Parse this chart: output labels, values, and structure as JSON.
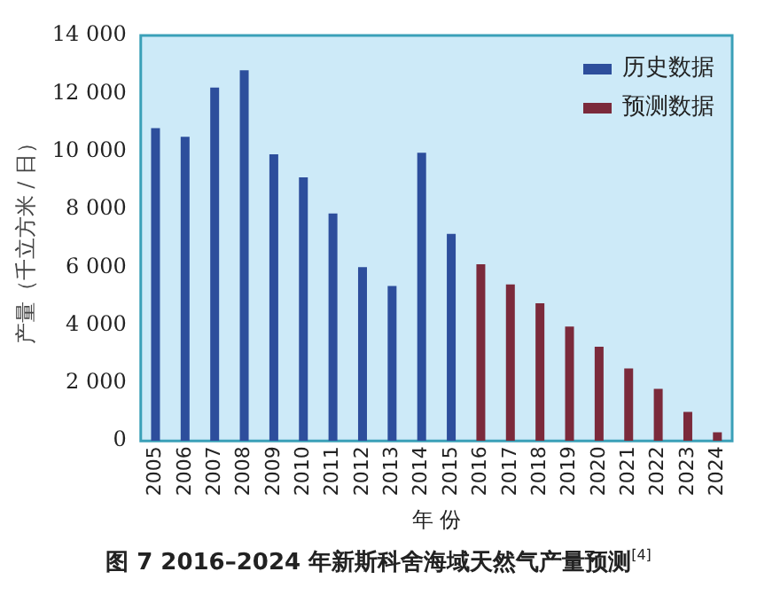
{
  "chart_data": {
    "type": "bar",
    "title": "图 7  2016–2024 年新斯科舍海域天然气产量预测$^{[4]}$",
    "xlabel": "年 份",
    "ylabel": "产量（千立方米 / 日）",
    "categories": [
      "2005",
      "2006",
      "2007",
      "2008",
      "2009",
      "2010",
      "2011",
      "2012",
      "2013",
      "2014",
      "2015",
      "2016",
      "2017",
      "2018",
      "2019",
      "2020",
      "2021",
      "2022",
      "2023",
      "2024"
    ],
    "series": [
      {
        "name": "历史数据",
        "color": "#2d4e9c",
        "values": [
          10800,
          10500,
          12200,
          12800,
          9900,
          9100,
          7850,
          6000,
          5350,
          9950,
          7150,
          null,
          null,
          null,
          null,
          null,
          null,
          null,
          null,
          null
        ]
      },
      {
        "name": "预测数据",
        "color": "#7b2a3b",
        "values": [
          null,
          null,
          null,
          null,
          null,
          null,
          null,
          null,
          null,
          null,
          null,
          6100,
          5400,
          4750,
          3950,
          3250,
          2500,
          1800,
          1000,
          300
        ]
      }
    ],
    "ylim": [
      0,
      14000
    ],
    "yticks": [
      0,
      {
        "value": 2000,
        "label": "2 000"
      },
      {
        "value": 4000,
        "label": "4 000"
      },
      {
        "value": 6000,
        "label": "6 000"
      },
      {
        "value": 8000,
        "label": "8 000"
      },
      {
        "value": 10000,
        "label": "10 000"
      },
      {
        "value": 12000,
        "label": "12 000"
      },
      {
        "value": 14000,
        "label": "14 000"
      }
    ],
    "grid": false,
    "legend": "top right"
  }
}
